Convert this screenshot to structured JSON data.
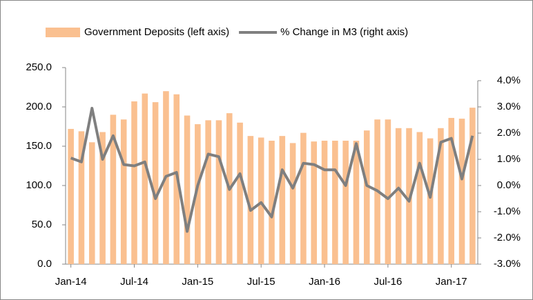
{
  "chart_data": {
    "type": "bar_line",
    "categories": [
      "Jan-14",
      null,
      null,
      null,
      null,
      null,
      "Jul-14",
      null,
      null,
      null,
      null,
      null,
      "Jan-15",
      null,
      null,
      null,
      null,
      null,
      "Jul-15",
      null,
      null,
      null,
      null,
      null,
      "Jan-16",
      null,
      null,
      null,
      null,
      null,
      "Jul-16",
      null,
      null,
      null,
      null,
      null,
      "Jan-17",
      null,
      null
    ],
    "series": [
      {
        "name": "Government Deposits (left axis)",
        "color": "#fac090",
        "type": "bar",
        "axis": "y",
        "values": [
          172,
          169,
          155,
          168,
          190,
          184,
          207,
          217,
          206,
          220,
          216,
          189,
          178,
          183,
          183,
          192,
          180,
          163,
          161,
          157,
          163,
          154,
          167,
          156,
          157,
          157,
          157,
          157,
          170,
          184,
          184,
          173,
          173,
          168,
          160,
          173,
          186,
          185,
          199
        ]
      },
      {
        "name": "% Change in M3 (right axis)",
        "color": "#7f7f7f",
        "type": "line",
        "axis": "y2",
        "values": [
          1.05,
          0.9,
          2.95,
          1.0,
          1.9,
          0.8,
          0.75,
          0.9,
          -0.5,
          0.35,
          0.5,
          -1.75,
          0.0,
          1.2,
          1.1,
          -0.15,
          0.45,
          -0.95,
          -0.65,
          -1.2,
          0.6,
          -0.1,
          0.85,
          0.8,
          0.6,
          0.6,
          0.0,
          1.6,
          0.0,
          -0.2,
          -0.5,
          -0.1,
          -0.6,
          0.85,
          -0.45,
          1.65,
          1.8,
          0.25,
          1.9
        ]
      }
    ],
    "ylim": [
      0,
      250
    ],
    "yticks": [
      {
        "value": 0,
        "label": "0.0"
      },
      {
        "value": 50,
        "label": "50.0"
      },
      {
        "value": 100,
        "label": "100.0"
      },
      {
        "value": 150,
        "label": "150.0"
      },
      {
        "value": 200,
        "label": "200.0"
      },
      {
        "value": 250,
        "label": "250.0"
      }
    ],
    "y2lim": [
      -3,
      4
    ],
    "y2ticks": [
      {
        "value": -3,
        "label": "-3.0%"
      },
      {
        "value": -2,
        "label": "-2.0%"
      },
      {
        "value": -1,
        "label": "-1.0%"
      },
      {
        "value": 0,
        "label": "0.0%"
      },
      {
        "value": 1,
        "label": "1.0%"
      },
      {
        "value": 2,
        "label": "2.0%"
      },
      {
        "value": 3,
        "label": "3.0%"
      },
      {
        "value": 4,
        "label": "4.0%"
      }
    ],
    "grid": false,
    "legend": "top"
  }
}
